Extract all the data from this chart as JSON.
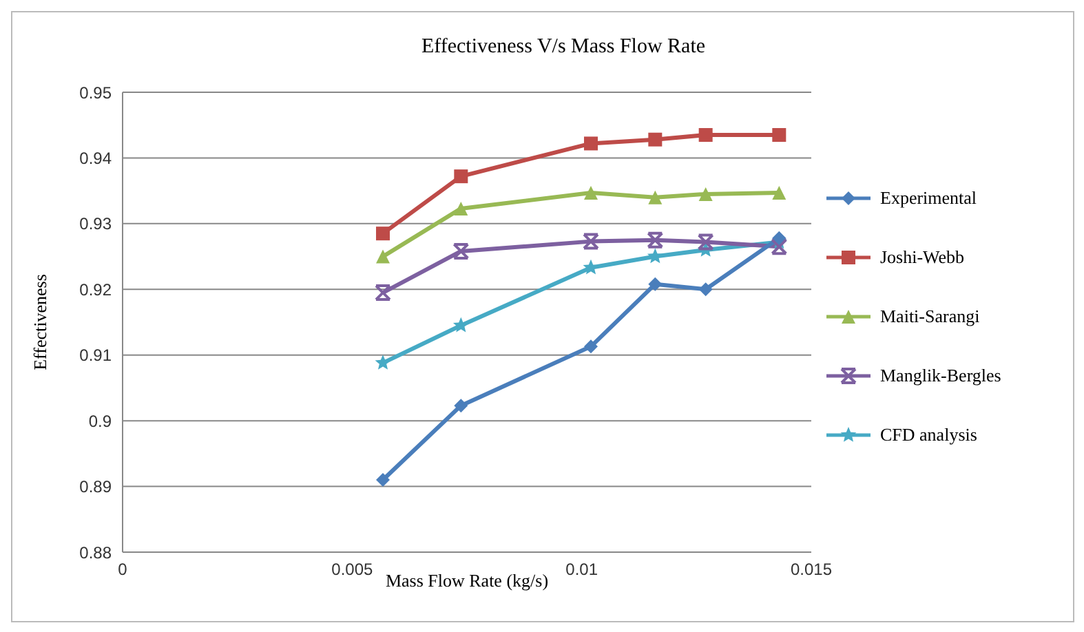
{
  "chart_data": {
    "type": "line",
    "title": "Effectiveness V/s Mass Flow Rate",
    "xlabel": "Mass Flow Rate (kg/s)",
    "ylabel": "Effectiveness",
    "x": [
      0.00567,
      0.00737,
      0.0102,
      0.0116,
      0.0127,
      0.0143
    ],
    "series": [
      {
        "name": "Experimental",
        "color": "#4a7ebb",
        "marker": "diamond",
        "values": [
          0.891,
          0.9023,
          0.9113,
          0.9208,
          0.92,
          0.9278
        ]
      },
      {
        "name": "Joshi-Webb",
        "color": "#be4b48",
        "marker": "square",
        "values": [
          0.9285,
          0.9372,
          0.9422,
          0.9428,
          0.9435,
          0.9435
        ]
      },
      {
        "name": "Maiti-Sarangi",
        "color": "#98b954",
        "marker": "triangle",
        "values": [
          0.925,
          0.9323,
          0.9347,
          0.934,
          0.9345,
          0.9347
        ]
      },
      {
        "name": "Manglik-Bergles",
        "color": "#7d60a0",
        "marker": "cross",
        "values": [
          0.9195,
          0.9258,
          0.9273,
          0.9275,
          0.9272,
          0.9265
        ]
      },
      {
        "name": "CFD analysis",
        "color": "#46aac5",
        "marker": "star",
        "values": [
          0.9088,
          0.9145,
          0.9233,
          0.925,
          0.926,
          0.9272
        ]
      }
    ],
    "xlim": [
      0,
      0.015
    ],
    "xticks": [
      0,
      0.005,
      0.01,
      0.015
    ],
    "ylim": [
      0.88,
      0.95
    ],
    "yticks": [
      0.88,
      0.89,
      0.9,
      0.91,
      0.92,
      0.93,
      0.94,
      0.95
    ],
    "grid": "y",
    "legend": "right"
  }
}
